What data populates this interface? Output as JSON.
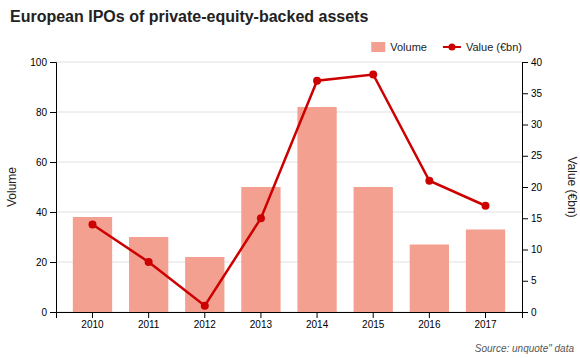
{
  "chart_data": {
    "type": "bar",
    "title": "European IPOs of private-equity-backed assets",
    "categories": [
      "2010",
      "2011",
      "2012",
      "2013",
      "2014",
      "2015",
      "2016",
      "2017"
    ],
    "series": [
      {
        "name": "Volume",
        "type": "bar",
        "color": "#F4A090",
        "values": [
          38,
          30,
          22,
          50,
          82,
          50,
          27,
          33
        ]
      },
      {
        "name": "Value (€bn)",
        "type": "line",
        "color": "#CC0000",
        "marker": "circle",
        "axis": "y2",
        "values": [
          14,
          8,
          1,
          15,
          37,
          38,
          21,
          17
        ]
      }
    ],
    "y_label": "Volume",
    "y2_label": "Value (€bn)",
    "ylim": [
      0,
      100
    ],
    "yticks": [
      0,
      20,
      40,
      60,
      80,
      100
    ],
    "y2lim": [
      0,
      40
    ],
    "y2ticks": [
      0,
      5,
      10,
      15,
      20,
      25,
      30,
      35,
      40
    ],
    "grid": true,
    "legend": "top",
    "annotations": [
      "Source: unquote\" data"
    ]
  }
}
